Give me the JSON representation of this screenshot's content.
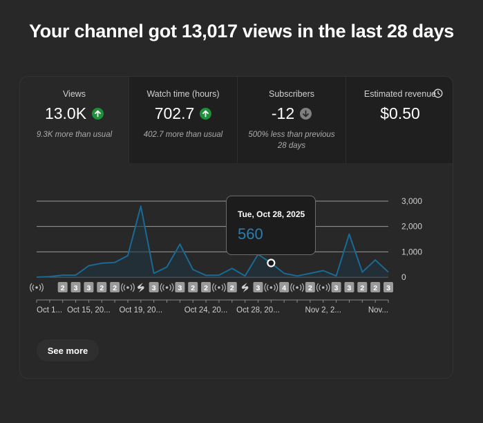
{
  "headline": "Your channel got 13,017 views in the last 28 days",
  "metrics": [
    {
      "label": "Views",
      "value": "13.0K",
      "trend": "up",
      "sub": "9.3K more than usual"
    },
    {
      "label": "Watch time (hours)",
      "value": "702.7",
      "trend": "up",
      "sub": "402.7 more than usual"
    },
    {
      "label": "Subscribers",
      "value": "-12",
      "trend": "down",
      "sub": "500% less than previous 28 days"
    },
    {
      "label": "Estimated revenue",
      "value": "$0.50",
      "trend": "none",
      "sub": ""
    }
  ],
  "tooltip": {
    "date": "Tue, Oct 28, 2025",
    "value": "560"
  },
  "see_more_label": "See more",
  "colors": {
    "line": "#1a6a94",
    "accent": "#2a7fb0",
    "up": "#1f8f3a",
    "down": "#808080"
  },
  "chart_data": {
    "type": "area",
    "ylim": [
      0,
      3000
    ],
    "y_ticks": [
      "3,000",
      "2,000",
      "1,000",
      "0"
    ],
    "y_tick_values": [
      3000,
      2000,
      1000,
      0
    ],
    "x_tick_labels": [
      "Oct 1...",
      "Oct 15, 20...",
      "Oct 19, 20...",
      "Oct 24, 20...",
      "Oct 28, 20...",
      "Nov 2, 2...",
      "Nov..."
    ],
    "x_tick_days": [
      0,
      4,
      8,
      13,
      17,
      22,
      26
    ],
    "series": [
      {
        "values": [
          0,
          20,
          80,
          80,
          450,
          550,
          580,
          850,
          2800,
          150,
          400,
          1300,
          300,
          70,
          80,
          350,
          50,
          900,
          560,
          150,
          50,
          150,
          260,
          50,
          1700,
          200,
          680,
          200
        ]
      }
    ],
    "highlight_index": 18,
    "event_markers": [
      {
        "day": 0,
        "kind": "live",
        "label": ""
      },
      {
        "day": 2,
        "kind": "count",
        "label": "2"
      },
      {
        "day": 3,
        "kind": "count",
        "label": "3"
      },
      {
        "day": 4,
        "kind": "count",
        "label": "3"
      },
      {
        "day": 5,
        "kind": "count",
        "label": "2"
      },
      {
        "day": 6,
        "kind": "count",
        "label": "2"
      },
      {
        "day": 7,
        "kind": "live",
        "label": ""
      },
      {
        "day": 8,
        "kind": "shorts",
        "label": ""
      },
      {
        "day": 9,
        "kind": "count",
        "label": "3"
      },
      {
        "day": 10,
        "kind": "live",
        "label": ""
      },
      {
        "day": 11,
        "kind": "count",
        "label": "3"
      },
      {
        "day": 12,
        "kind": "count",
        "label": "2"
      },
      {
        "day": 13,
        "kind": "count",
        "label": "2"
      },
      {
        "day": 14,
        "kind": "live",
        "label": ""
      },
      {
        "day": 15,
        "kind": "count",
        "label": "2"
      },
      {
        "day": 16,
        "kind": "shorts",
        "label": ""
      },
      {
        "day": 17,
        "kind": "count",
        "label": "3"
      },
      {
        "day": 18,
        "kind": "live",
        "label": ""
      },
      {
        "day": 19,
        "kind": "count",
        "label": "4"
      },
      {
        "day": 20,
        "kind": "live",
        "label": ""
      },
      {
        "day": 21,
        "kind": "count",
        "label": "2"
      },
      {
        "day": 22,
        "kind": "live",
        "label": ""
      },
      {
        "day": 23,
        "kind": "count",
        "label": "3"
      },
      {
        "day": 24,
        "kind": "count",
        "label": "3"
      },
      {
        "day": 25,
        "kind": "count",
        "label": "2"
      },
      {
        "day": 26,
        "kind": "count",
        "label": "2"
      },
      {
        "day": 27,
        "kind": "count",
        "label": "3"
      }
    ]
  }
}
